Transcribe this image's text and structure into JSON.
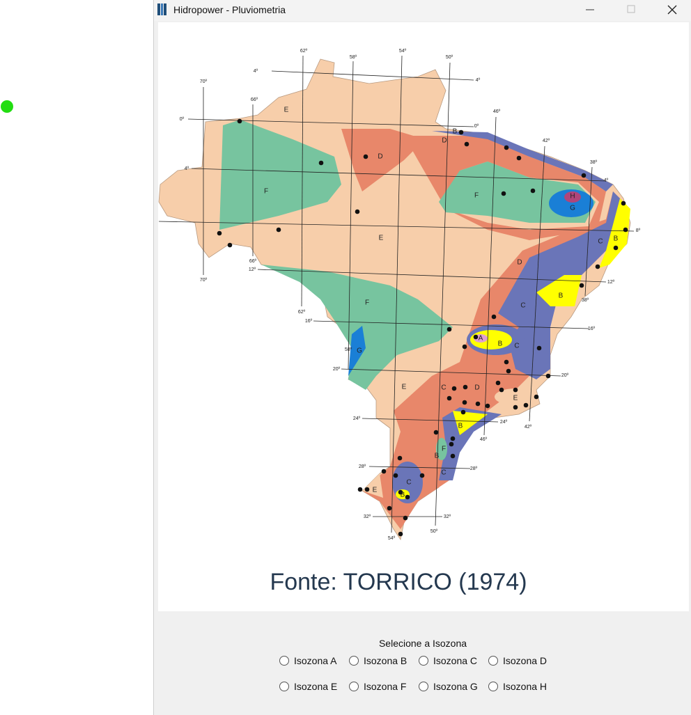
{
  "window": {
    "title": "Hidropower - Pluviometria"
  },
  "map": {
    "degree_labels": [
      "62º",
      "58º",
      "54º",
      "50º",
      "4º",
      "4º",
      "70º",
      "66º",
      "0º",
      "0º",
      "46º",
      "42º",
      "38º",
      "4º",
      "4º",
      "8º",
      "66º",
      "12º",
      "70º",
      "12º",
      "38º",
      "62º",
      "16º",
      "16º",
      "58º",
      "20º",
      "20º",
      "24º",
      "24º",
      "46º",
      "42º",
      "28º",
      "28º",
      "32º",
      "32º",
      "50º",
      "54º"
    ],
    "zone_labels": [
      "E",
      "F",
      "D",
      "E",
      "F",
      "H",
      "G",
      "D",
      "C",
      "B",
      "C",
      "B",
      "F",
      "G",
      "A",
      "B",
      "C",
      "E",
      "D",
      "C",
      "E",
      "B",
      "F",
      "B",
      "C",
      "B",
      "C",
      "E",
      "D",
      "B"
    ],
    "caption": "Fonte: TORRICO (1974)"
  },
  "radio_group": {
    "label": "Selecione a Isozona",
    "options": [
      "Isozona A",
      "Isozona B",
      "Isozona C",
      "Isozona D",
      "Isozona E",
      "Isozona F",
      "Isozona G",
      "Isozona H"
    ]
  }
}
